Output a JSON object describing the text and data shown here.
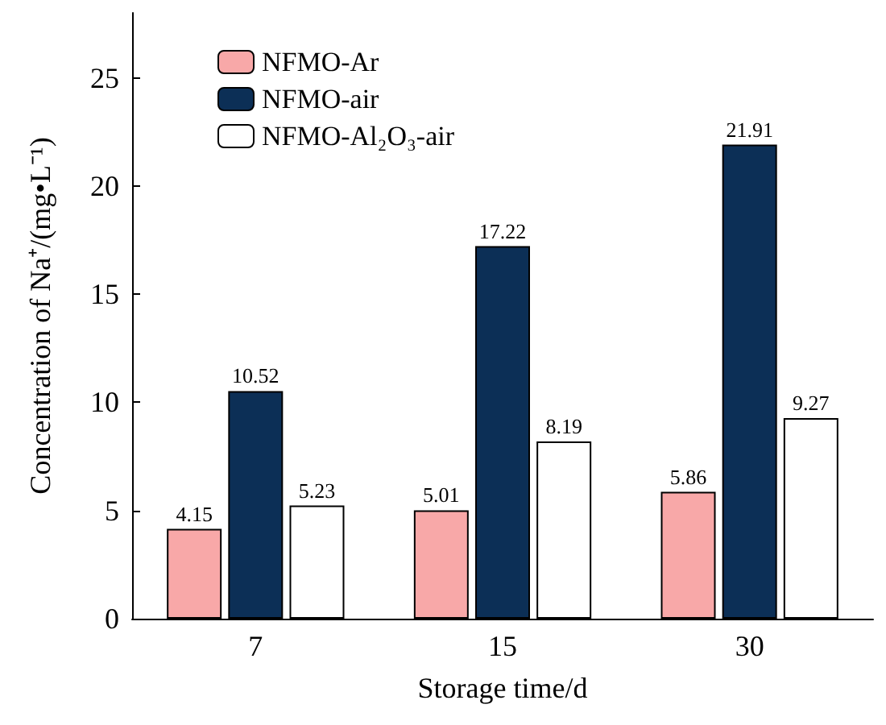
{
  "chart_data": {
    "type": "bar",
    "xlabel": "Storage time/d",
    "ylabel": "Concentration of Na⁺/(mg•L⁻¹)",
    "categories": [
      "7",
      "15",
      "30"
    ],
    "series": [
      {
        "name": "NFMO-Ar",
        "color": "#f8a8a8",
        "values": [
          4.15,
          5.01,
          5.86
        ]
      },
      {
        "name": "NFMO-air",
        "color": "#0c2f56",
        "values": [
          10.52,
          17.22,
          21.91
        ]
      },
      {
        "name": "NFMO-Al₂O₃-air",
        "color": "#ffffff",
        "values": [
          5.23,
          8.19,
          9.27
        ]
      }
    ],
    "ylim": [
      0,
      28
    ],
    "yticks": [
      0,
      5,
      10,
      15,
      20,
      25
    ],
    "grid": false,
    "legend": "top left",
    "data_labels": true
  }
}
